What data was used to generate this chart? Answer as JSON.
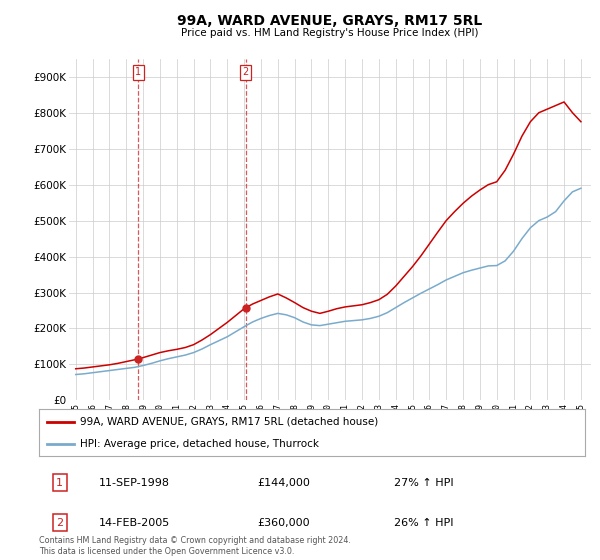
{
  "title": "99A, WARD AVENUE, GRAYS, RM17 5RL",
  "subtitle": "Price paid vs. HM Land Registry's House Price Index (HPI)",
  "ylim": [
    0,
    950000
  ],
  "xlim_start": 1994.6,
  "xlim_end": 2025.6,
  "legend1_label": "99A, WARD AVENUE, GRAYS, RM17 5RL (detached house)",
  "legend2_label": "HPI: Average price, detached house, Thurrock",
  "transaction1_date": "11-SEP-1998",
  "transaction1_price": "£144,000",
  "transaction1_hpi": "27% ↑ HPI",
  "transaction2_date": "14-FEB-2005",
  "transaction2_price": "£360,000",
  "transaction2_hpi": "26% ↑ HPI",
  "footer": "Contains HM Land Registry data © Crown copyright and database right 2024.\nThis data is licensed under the Open Government Licence v3.0.",
  "line_color_red": "#cc0000",
  "line_color_blue": "#7aabcc",
  "transaction_color": "#cc2222",
  "background_color": "#ffffff",
  "grid_color": "#cccccc",
  "transaction1_x": 1998.7,
  "transaction2_x": 2005.1,
  "hpi_line_data_x": [
    1995.0,
    1995.5,
    1996.0,
    1996.5,
    1997.0,
    1997.5,
    1998.0,
    1998.5,
    1999.0,
    1999.5,
    2000.0,
    2000.5,
    2001.0,
    2001.5,
    2002.0,
    2002.5,
    2003.0,
    2003.5,
    2004.0,
    2004.5,
    2005.0,
    2005.5,
    2006.0,
    2006.5,
    2007.0,
    2007.5,
    2008.0,
    2008.5,
    2009.0,
    2009.5,
    2010.0,
    2010.5,
    2011.0,
    2011.5,
    2012.0,
    2012.5,
    2013.0,
    2013.5,
    2014.0,
    2014.5,
    2015.0,
    2015.5,
    2016.0,
    2016.5,
    2017.0,
    2017.5,
    2018.0,
    2018.5,
    2019.0,
    2019.5,
    2020.0,
    2020.5,
    2021.0,
    2021.5,
    2022.0,
    2022.5,
    2023.0,
    2023.5,
    2024.0,
    2024.5,
    2025.0
  ],
  "hpi_line_data_y": [
    72000,
    74000,
    77000,
    80000,
    83000,
    86000,
    89000,
    92000,
    97000,
    103000,
    110000,
    116000,
    121000,
    126000,
    133000,
    143000,
    155000,
    166000,
    177000,
    191000,
    205000,
    218000,
    228000,
    236000,
    242000,
    238000,
    230000,
    218000,
    210000,
    208000,
    212000,
    216000,
    220000,
    222000,
    224000,
    228000,
    234000,
    244000,
    258000,
    272000,
    285000,
    298000,
    310000,
    322000,
    335000,
    345000,
    355000,
    362000,
    368000,
    374000,
    375000,
    388000,
    415000,
    450000,
    480000,
    500000,
    510000,
    525000,
    555000,
    580000,
    590000
  ],
  "price_line_data_x": [
    1995.0,
    1995.5,
    1996.0,
    1996.5,
    1997.0,
    1997.5,
    1998.0,
    1998.5,
    1999.0,
    1999.5,
    2000.0,
    2000.5,
    2001.0,
    2001.5,
    2002.0,
    2002.5,
    2003.0,
    2003.5,
    2004.0,
    2004.5,
    2005.0,
    2005.5,
    2006.0,
    2006.5,
    2007.0,
    2007.5,
    2008.0,
    2008.5,
    2009.0,
    2009.5,
    2010.0,
    2010.5,
    2011.0,
    2011.5,
    2012.0,
    2012.5,
    2013.0,
    2013.5,
    2014.0,
    2014.5,
    2015.0,
    2015.5,
    2016.0,
    2016.5,
    2017.0,
    2017.5,
    2018.0,
    2018.5,
    2019.0,
    2019.5,
    2020.0,
    2020.5,
    2021.0,
    2021.5,
    2022.0,
    2022.5,
    2023.0,
    2023.5,
    2024.0,
    2024.5,
    2025.0
  ],
  "price_line_data_y": [
    88000,
    90000,
    93000,
    96000,
    99000,
    103000,
    108000,
    113000,
    119000,
    126000,
    133000,
    138000,
    142000,
    147000,
    155000,
    168000,
    183000,
    200000,
    217000,
    236000,
    255000,
    268000,
    278000,
    288000,
    296000,
    285000,
    272000,
    258000,
    248000,
    242000,
    248000,
    255000,
    260000,
    263000,
    266000,
    272000,
    280000,
    295000,
    318000,
    345000,
    372000,
    402000,
    435000,
    468000,
    500000,
    525000,
    548000,
    568000,
    585000,
    600000,
    608000,
    640000,
    685000,
    735000,
    775000,
    800000,
    810000,
    820000,
    830000,
    800000,
    775000
  ]
}
